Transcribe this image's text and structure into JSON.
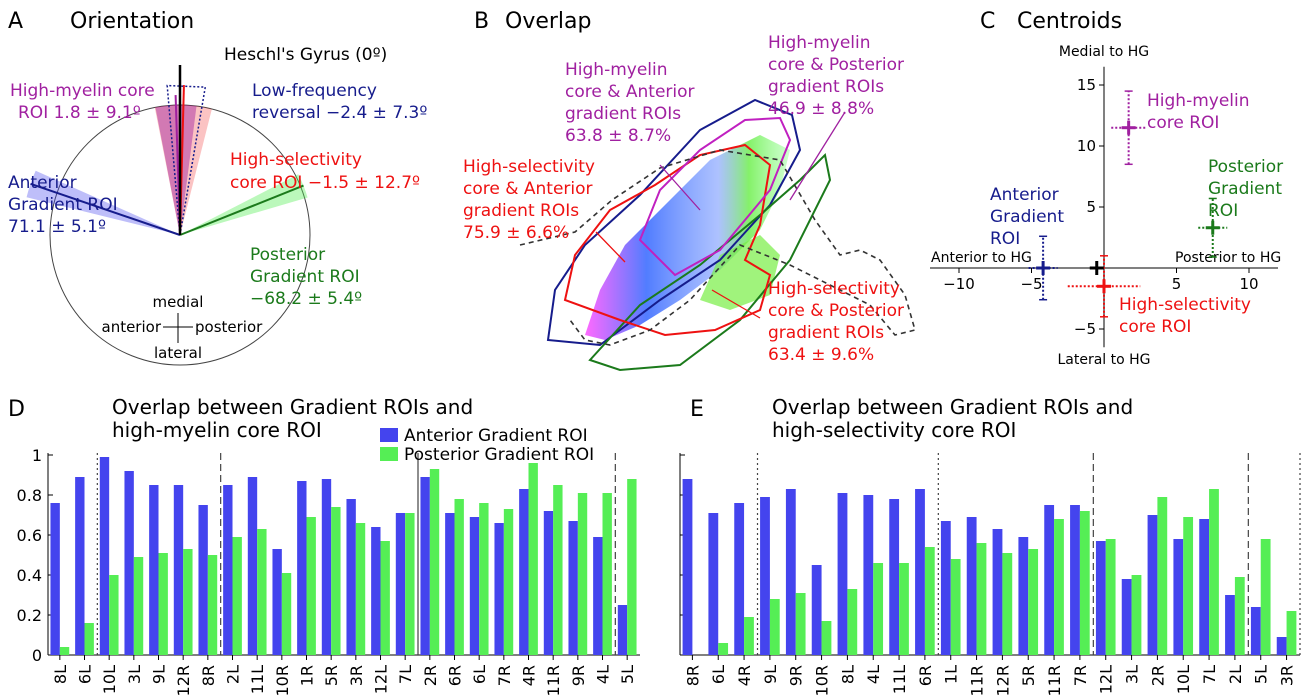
{
  "colors": {
    "blue": "#4444ee",
    "green": "#55ee55",
    "purple": "#a020a0",
    "red": "#ee1111",
    "navy": "#161c8c",
    "darkgreen": "#1b7a1b",
    "black": "#000000"
  },
  "panelA": {
    "letter": "A",
    "title": "Orientation",
    "hg_label": "Heschl's Gyrus (0º)",
    "myelin_label": [
      "High-myelin core",
      "ROI 1.8 ± 9.1º"
    ],
    "lowfreq_label": [
      "Low-frequency",
      "reversal −2.4 ± 7.3º"
    ],
    "selectivity_label": [
      "High-selectivity",
      "core ROI  −1.5 ± 12.7º"
    ],
    "anterior_label": [
      "Anterior",
      "Gradient ROI",
      "71.1 ± 5.1º"
    ],
    "posterior_label": [
      "Posterior",
      "Gradient ROI",
      "−68.2 ± 5.4º"
    ],
    "compass": {
      "medial": "medial",
      "anterior": "anterior",
      "posterior": "posterior",
      "lateral": "lateral"
    },
    "angles": {
      "myelin": 1.8,
      "myelin_sd": 9.1,
      "lowfreq": -2.4,
      "lowfreq_sd": 7.3,
      "selectivity": -1.5,
      "selectivity_sd": 12.7,
      "anterior": 71.1,
      "anterior_sd": 5.1,
      "posterior": -68.2,
      "posterior_sd": 5.4
    }
  },
  "panelB": {
    "letter": "B",
    "title": "Overlap",
    "myelin_anterior": [
      "High-myelin",
      "core & Anterior",
      "gradient ROIs",
      "63.8 ± 8.7%"
    ],
    "myelin_posterior": [
      "High-myelin",
      "core & Posterior",
      "gradient ROIs",
      "46.9 ± 8.8%"
    ],
    "selectivity_anterior": [
      "High-selectivity",
      "core & Anterior",
      "gradient ROIs",
      "75.9 ± 6.6%"
    ],
    "selectivity_posterior": [
      "High-selectivity",
      "core & Posterior",
      "gradient ROIs",
      "63.4 ± 9.6%"
    ]
  },
  "panelC": {
    "letter": "C",
    "title": "Centroids",
    "top_label": "Medial to HG",
    "bottom_label": "Lateral to HG",
    "left_label": "Anterior to HG",
    "right_label": "Posterior to HG",
    "myelin_label": [
      "High-myelin",
      "core ROI"
    ],
    "posterior_label": [
      "Posterior",
      "Gradient",
      "ROI"
    ],
    "anterior_label": [
      "Anterior",
      "Gradient",
      "ROI"
    ],
    "selectivity_label": [
      "High-selectivity",
      "core ROI"
    ],
    "x_ticks": [
      "−10",
      "−5",
      "5",
      "10"
    ],
    "y_ticks": [
      "15",
      "10",
      "5",
      "−5"
    ]
  },
  "chart_data": [
    {
      "type": "scatter",
      "title": "Centroids",
      "xlim": [
        -12,
        12
      ],
      "ylim": [
        -7,
        17
      ],
      "series": [
        {
          "name": "High-myelin core ROI",
          "x": 1.7,
          "y": 11.5,
          "xerr": 1.2,
          "yerr": 3.0,
          "color": "#a020a0"
        },
        {
          "name": "Posterior Gradient ROI",
          "x": 7.5,
          "y": 3.3,
          "xerr": 1.0,
          "yerr": 2.4,
          "color": "#1b7a1b"
        },
        {
          "name": "Anterior Gradient ROI",
          "x": -4.2,
          "y": 0.0,
          "xerr": 1.0,
          "yerr": 2.6,
          "color": "#161c8c"
        },
        {
          "name": "High-selectivity core ROI",
          "x": 0.0,
          "y": -1.5,
          "xerr": 2.5,
          "yerr": 2.5,
          "color": "#ee1111"
        },
        {
          "name": "",
          "x": -0.5,
          "y": 0.0,
          "xerr": 0,
          "yerr": 0,
          "color": "#000000"
        }
      ]
    },
    {
      "type": "bar",
      "letter": "D",
      "title": [
        "Overlap between Gradient ROIs and",
        "high-myelin core ROI"
      ],
      "categories": [
        "8L",
        "6L",
        "10L",
        "3L",
        "9L",
        "12R",
        "8R",
        "2L",
        "11L",
        "10R",
        "1R",
        "5R",
        "3R",
        "12L",
        "7L",
        "2R",
        "6R",
        "6L",
        "7R",
        "4R",
        "11R",
        "9R",
        "4L",
        "5L"
      ],
      "ylim": [
        0,
        1
      ],
      "y_ticks": [
        "0",
        "0.2",
        "0.4",
        "0.6",
        "0.8",
        "1"
      ],
      "separators": [
        {
          "after": 1,
          "style": "dotted"
        },
        {
          "after": 6,
          "style": "dashed"
        },
        {
          "after": 14,
          "style": "solid"
        },
        {
          "after": 22,
          "style": "dashed"
        }
      ],
      "series": [
        {
          "name": "Anterior Gradient ROI",
          "values": [
            0.76,
            0.89,
            0.99,
            0.92,
            0.85,
            0.85,
            0.75,
            0.85,
            0.89,
            0.53,
            0.87,
            0.88,
            0.78,
            0.64,
            0.71,
            0.89,
            0.71,
            0.69,
            0.66,
            0.83,
            0.72,
            0.67,
            0.59,
            0.25
          ]
        },
        {
          "name": "Posterior Gradient ROI",
          "values": [
            0.04,
            0.16,
            0.4,
            0.49,
            0.51,
            0.53,
            0.5,
            0.59,
            0.63,
            0.41,
            0.69,
            0.74,
            0.66,
            0.57,
            0.71,
            0.93,
            0.78,
            0.76,
            0.73,
            0.96,
            0.85,
            0.81,
            0.81,
            0.88
          ]
        }
      ]
    },
    {
      "type": "bar",
      "letter": "E",
      "title": [
        "Overlap between Gradient ROIs and",
        "high-selectivity core ROI"
      ],
      "categories": [
        "8R",
        "6L",
        "4R",
        "9L",
        "9R",
        "10R",
        "8L",
        "4L",
        "11L",
        "6R",
        "1L",
        "11R",
        "12R",
        "5R",
        "11R",
        "7R",
        "12L",
        "3L",
        "2R",
        "10L",
        "7L",
        "2L",
        "5L",
        "3R"
      ],
      "ylim": [
        0,
        1
      ],
      "separators": [
        {
          "after": 2,
          "style": "dotted"
        },
        {
          "after": 9,
          "style": "dotted"
        },
        {
          "after": 15,
          "style": "dashed"
        },
        {
          "after": 21,
          "style": "dashed"
        },
        {
          "after": 23,
          "style": "dotted"
        }
      ],
      "series": [
        {
          "name": "Anterior Gradient ROI",
          "values": [
            0.88,
            0.71,
            0.76,
            0.79,
            0.83,
            0.45,
            0.81,
            0.8,
            0.78,
            0.83,
            0.67,
            0.69,
            0.63,
            0.59,
            0.75,
            0.75,
            0.57,
            0.38,
            0.7,
            0.58,
            0.68,
            0.3,
            0.24,
            0.09
          ]
        },
        {
          "name": "Posterior Gradient ROI",
          "values": [
            0.0,
            0.06,
            0.19,
            0.28,
            0.31,
            0.17,
            0.33,
            0.46,
            0.46,
            0.54,
            0.48,
            0.56,
            0.51,
            0.53,
            0.68,
            0.72,
            0.58,
            0.4,
            0.79,
            0.69,
            0.83,
            0.39,
            0.58,
            0.22
          ]
        }
      ]
    }
  ]
}
